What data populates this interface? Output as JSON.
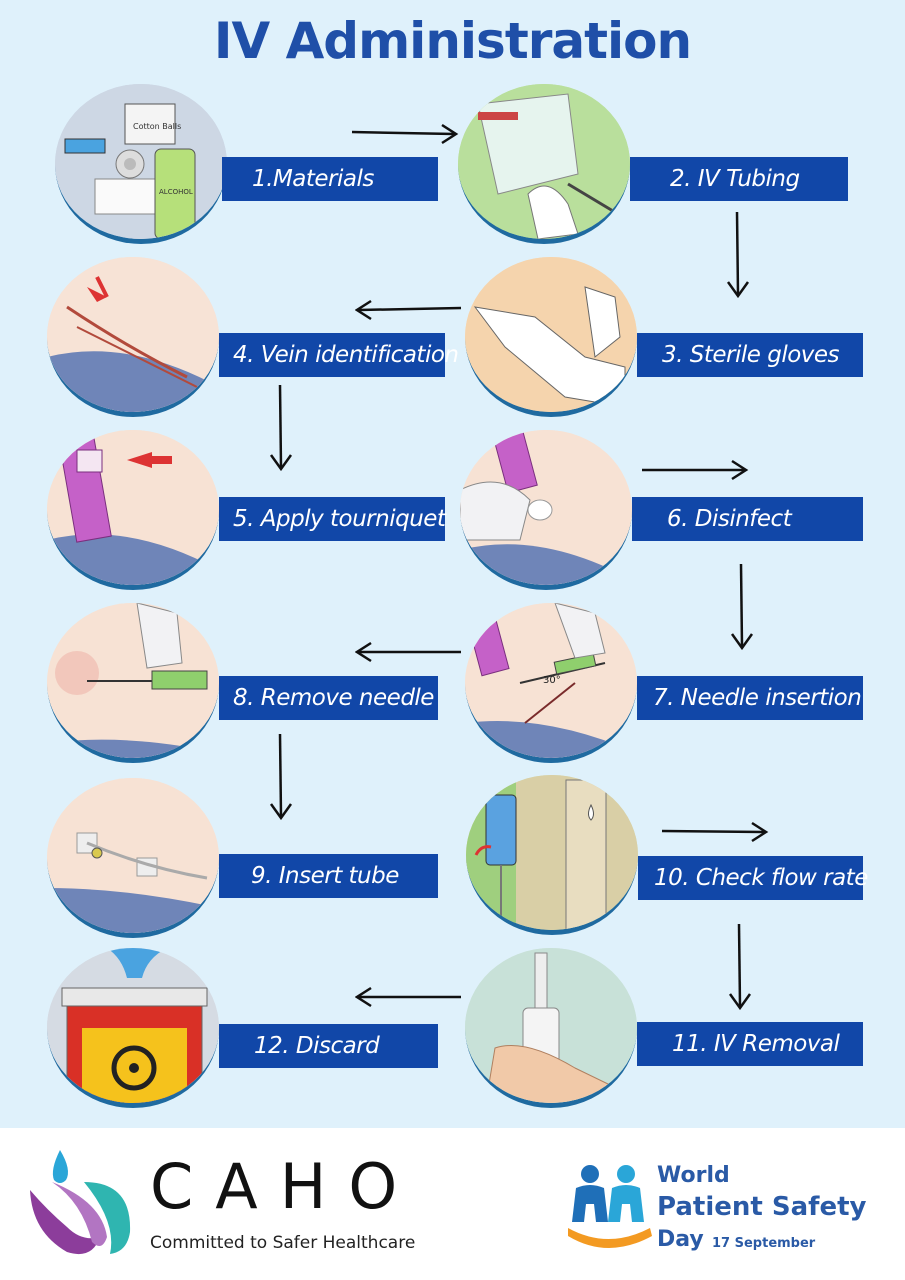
{
  "title": "IV Administration",
  "steps": [
    {
      "label": "1.Materials",
      "icon": "iv-materials-illustration"
    },
    {
      "label": "2. IV Tubing",
      "icon": "iv-tubing-illustration"
    },
    {
      "label": "3. Sterile gloves",
      "icon": "sterile-gloves-illustration"
    },
    {
      "label": "4. Vein identification",
      "icon": "vein-identification-illustration"
    },
    {
      "label": "5. Apply tourniquet",
      "icon": "tourniquet-illustration"
    },
    {
      "label": "6. Disinfect",
      "icon": "disinfect-illustration"
    },
    {
      "label": "7. Needle insertion",
      "icon": "needle-insertion-illustration"
    },
    {
      "label": "8. Remove needle",
      "icon": "remove-needle-illustration"
    },
    {
      "label": "9. Insert tube",
      "icon": "insert-tube-illustration"
    },
    {
      "label": "10. Check flow rate",
      "icon": "flow-rate-illustration"
    },
    {
      "label": "11. IV Removal",
      "icon": "iv-removal-illustration"
    },
    {
      "label": "12. Discard",
      "icon": "sharps-discard-illustration"
    }
  ],
  "illustration_text": {
    "cotton_balls": "Cotton Balls",
    "alcohol": "ALCOHOL",
    "angle": "30°"
  },
  "footer": {
    "caho": {
      "name": "CAHO",
      "tagline": "Committed to Safer Healthcare"
    },
    "wpsd": {
      "line1": "World",
      "line2": "Patient Safety",
      "line3": "Day",
      "date": "17 September"
    }
  },
  "colors": {
    "title": "#1f4fa8",
    "label_bg": "#1147a8",
    "background": "#dff1fb"
  }
}
